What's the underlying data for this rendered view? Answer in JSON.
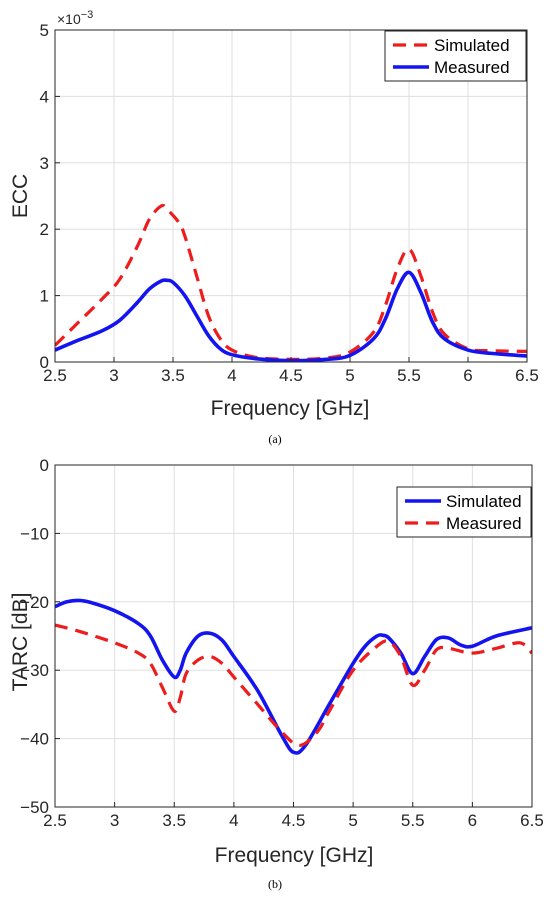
{
  "captions": {
    "a": "(a)",
    "b": "(b)"
  },
  "chart_data": [
    {
      "type": "line",
      "xlabel": "Frequency [GHz]",
      "ylabel": "ECC",
      "exponent_label": "×10",
      "exponent_power": "−3",
      "xlim": [
        2.5,
        6.5
      ],
      "ylim": [
        0,
        5
      ],
      "xticks": [
        2.5,
        3,
        3.5,
        4,
        4.5,
        5,
        5.5,
        6,
        6.5
      ],
      "xtick_labels": [
        "2.5",
        "3",
        "3.5",
        "4",
        "4.5",
        "5",
        "5.5",
        "6",
        "6.5"
      ],
      "yticks": [
        0,
        1,
        2,
        3,
        4,
        5
      ],
      "ytick_labels": [
        "0",
        "1",
        "2",
        "3",
        "4",
        "5"
      ],
      "grid": true,
      "legend_position": "top-right",
      "series": [
        {
          "name": "Simulated",
          "color": "#ee1c1c",
          "style": "dashed",
          "x": [
            2.5,
            2.7,
            2.9,
            3.05,
            3.2,
            3.3,
            3.4,
            3.45,
            3.55,
            3.6,
            3.7,
            3.8,
            3.9,
            4.0,
            4.2,
            4.5,
            4.8,
            5.0,
            5.2,
            5.3,
            5.4,
            5.5,
            5.6,
            5.7,
            5.8,
            6.0,
            6.2,
            6.5
          ],
          "y": [
            0.25,
            0.6,
            0.95,
            1.25,
            1.75,
            2.15,
            2.35,
            2.3,
            2.1,
            1.9,
            1.3,
            0.7,
            0.35,
            0.18,
            0.07,
            0.04,
            0.06,
            0.15,
            0.45,
            0.85,
            1.4,
            1.7,
            1.3,
            0.75,
            0.42,
            0.2,
            0.17,
            0.16
          ]
        },
        {
          "name": "Measured",
          "color": "#1414f0",
          "style": "solid",
          "x": [
            2.5,
            2.7,
            2.9,
            3.05,
            3.2,
            3.3,
            3.4,
            3.45,
            3.5,
            3.6,
            3.7,
            3.8,
            3.9,
            4.0,
            4.2,
            4.5,
            4.8,
            5.0,
            5.2,
            5.3,
            5.4,
            5.5,
            5.6,
            5.7,
            5.8,
            6.0,
            6.2,
            6.5
          ],
          "y": [
            0.18,
            0.33,
            0.47,
            0.63,
            0.9,
            1.1,
            1.22,
            1.23,
            1.2,
            1.0,
            0.7,
            0.4,
            0.2,
            0.11,
            0.05,
            0.02,
            0.04,
            0.1,
            0.35,
            0.65,
            1.1,
            1.35,
            1.05,
            0.6,
            0.35,
            0.18,
            0.13,
            0.09
          ]
        }
      ]
    },
    {
      "type": "line",
      "xlabel": "Frequency [GHz]",
      "ylabel": "TARC [dB]",
      "xlim": [
        2.5,
        6.5
      ],
      "ylim": [
        -50,
        0
      ],
      "xticks": [
        2.5,
        3,
        3.5,
        4,
        4.5,
        5,
        5.5,
        6,
        6.5
      ],
      "xtick_labels": [
        "2.5",
        "3",
        "3.5",
        "4",
        "4.5",
        "5",
        "5.5",
        "6",
        "6.5"
      ],
      "yticks": [
        -50,
        -40,
        -30,
        -20,
        -10,
        0
      ],
      "ytick_labels": [
        "−50",
        "−40",
        "−30",
        "−20",
        "−10",
        "0"
      ],
      "grid": true,
      "legend_position": "top-right",
      "series": [
        {
          "name": "Simulated",
          "color": "#1414f0",
          "style": "solid",
          "x": [
            2.5,
            2.6,
            2.7,
            2.8,
            3.0,
            3.2,
            3.3,
            3.4,
            3.5,
            3.55,
            3.6,
            3.7,
            3.8,
            3.9,
            4.0,
            4.2,
            4.4,
            4.5,
            4.6,
            4.8,
            5.0,
            5.1,
            5.2,
            5.25,
            5.3,
            5.4,
            5.5,
            5.6,
            5.7,
            5.8,
            5.9,
            6.0,
            6.2,
            6.5
          ],
          "y": [
            -20.7,
            -20.0,
            -19.8,
            -20.1,
            -21.3,
            -23.2,
            -25.0,
            -28.5,
            -31.0,
            -30.0,
            -27.5,
            -25.0,
            -24.6,
            -25.6,
            -28.0,
            -33.0,
            -39.5,
            -42.0,
            -41.0,
            -35.0,
            -29.0,
            -26.5,
            -25.0,
            -24.9,
            -25.3,
            -27.5,
            -30.5,
            -28.0,
            -25.5,
            -25.3,
            -26.3,
            -26.5,
            -25.0,
            -23.8
          ]
        },
        {
          "name": "Measured",
          "color": "#ee1c1c",
          "style": "dashed",
          "x": [
            2.5,
            2.7,
            3.0,
            3.2,
            3.3,
            3.4,
            3.5,
            3.55,
            3.6,
            3.7,
            3.8,
            3.9,
            4.0,
            4.2,
            4.4,
            4.55,
            4.7,
            4.8,
            5.0,
            5.2,
            5.3,
            5.4,
            5.5,
            5.6,
            5.7,
            5.8,
            6.0,
            6.2,
            6.4,
            6.5
          ],
          "y": [
            -23.4,
            -24.3,
            -26.0,
            -27.5,
            -29.0,
            -32.5,
            -36.0,
            -34.0,
            -30.5,
            -28.5,
            -28.0,
            -29.0,
            -31.0,
            -35.0,
            -39.0,
            -41.0,
            -39.0,
            -36.0,
            -30.0,
            -26.5,
            -25.8,
            -28.0,
            -32.2,
            -30.0,
            -27.0,
            -26.8,
            -27.5,
            -26.8,
            -26.0,
            -27.5
          ]
        }
      ]
    }
  ]
}
